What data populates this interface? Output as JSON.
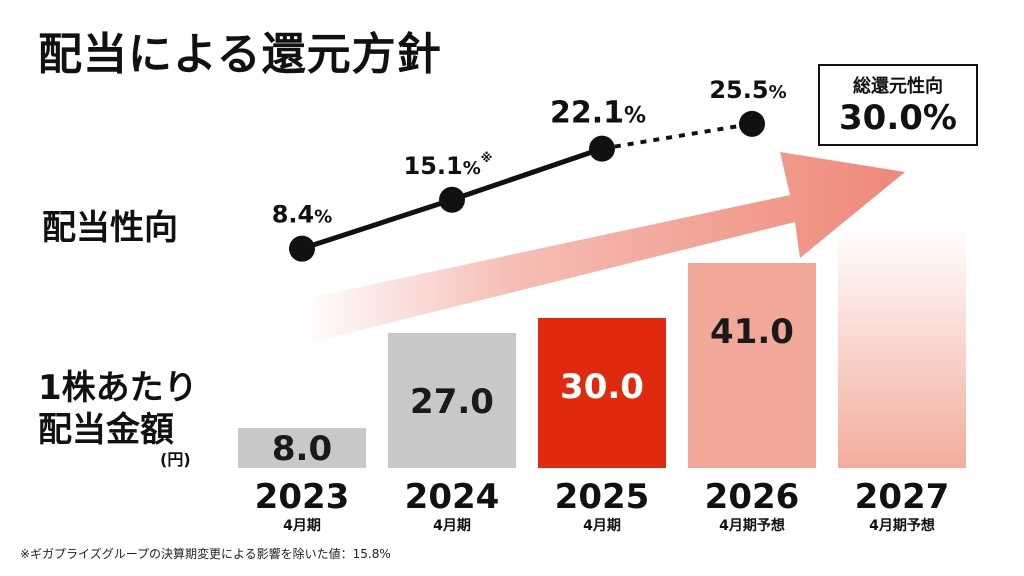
{
  "title": "配当による還元方針",
  "labels": {
    "payout_ratio": "配当性向",
    "dps_line1": "1株あたり",
    "dps_line2": "配当金額",
    "dps_unit": "(円)"
  },
  "target": {
    "label": "総還元性向",
    "value": "30.0%"
  },
  "footnote": "※ギガプライズグループの決算期変更による影響を除いた値：15.8%",
  "colors": {
    "bar_gray": "#c8c8c8",
    "bar_red": "#e02a10",
    "bar_pink": "#f2a898",
    "arrow": "#ee8878"
  },
  "chart_data": [
    {
      "type": "bar",
      "categories": [
        "2023",
        "2024",
        "2025",
        "2026",
        "2027"
      ],
      "sub_labels": [
        "4月期",
        "4月期",
        "4月期",
        "4月期予想",
        "4月期予想"
      ],
      "values": [
        8.0,
        27.0,
        30.0,
        41.0,
        null
      ],
      "value_labels": [
        "8.0",
        "27.0",
        "30.0",
        "41.0",
        ""
      ],
      "bar_styles": [
        "actual",
        "actual",
        "current",
        "forecast",
        "gradient"
      ],
      "ylim": [
        0,
        60
      ]
    },
    {
      "type": "line",
      "x": [
        "2023",
        "2024",
        "2025",
        "2026"
      ],
      "values": [
        8.4,
        15.1,
        22.1,
        25.5
      ],
      "value_labels": [
        "8.4",
        "15.1",
        "22.1",
        "25.5"
      ],
      "unit": "%",
      "markers": [
        "",
        "※",
        "",
        ""
      ],
      "dashed_from_index": 2,
      "ylim": [
        0,
        40
      ]
    }
  ]
}
